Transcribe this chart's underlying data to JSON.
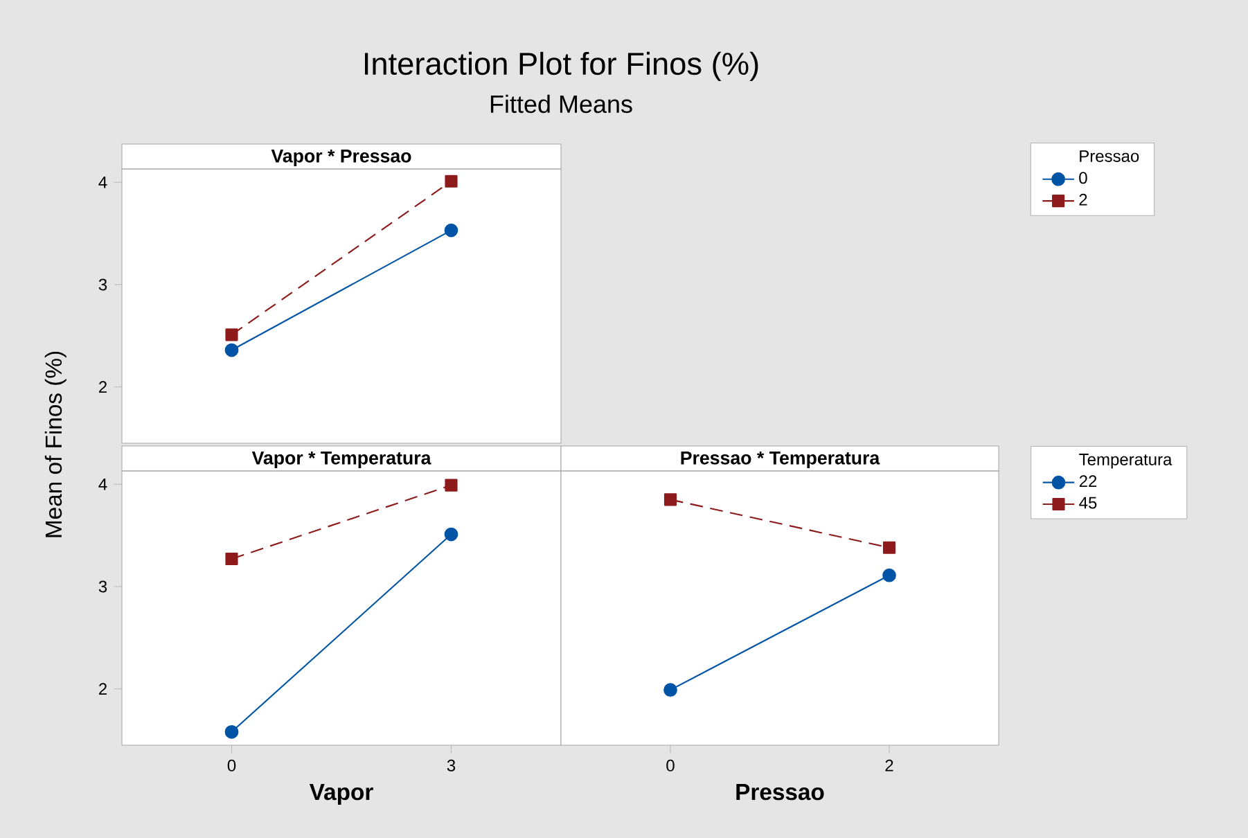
{
  "chart_data": [
    {
      "type": "line",
      "title": "Interaction Plot for Finos (%)",
      "subtitle": "Fitted Means",
      "annotations": [
        "Vapor * Pressao"
      ],
      "categories": [
        "0",
        "3"
      ],
      "ylim": [
        1.45,
        4.13
      ],
      "yticks": [
        2,
        3,
        4
      ],
      "tick_labels": "y",
      "legend": "right",
      "legend_title": "Pressao",
      "series": [
        {
          "name": "0",
          "color": "#0054a6",
          "marker": "circle",
          "line_style": "solid",
          "values": [
            2.36,
            3.53
          ]
        },
        {
          "name": "2",
          "color": "#8e1b1b",
          "marker": "square",
          "line_style": "dashed",
          "values": [
            2.51,
            4.01
          ]
        }
      ]
    },
    {
      "type": "line",
      "annotations": [
        "Vapor * Temperatura"
      ],
      "categories": [
        "0",
        "3"
      ],
      "xlabel": "Vapor",
      "ylabel": "Mean of Finos (%)",
      "ylim": [
        1.45,
        4.13
      ],
      "yticks": [
        2,
        3,
        4
      ],
      "series": [
        {
          "color": "#0054a6",
          "marker": "circle",
          "line_style": "solid",
          "values": [
            1.58,
            3.51
          ]
        },
        {
          "color": "#8e1b1b",
          "marker": "square",
          "line_style": "dashed",
          "values": [
            3.27,
            3.99
          ]
        }
      ]
    },
    {
      "type": "line",
      "annotations": [
        "Pressao * Temperatura"
      ],
      "categories": [
        "0",
        "2"
      ],
      "xlabel": "Pressao",
      "ylim": [
        1.45,
        4.13
      ],
      "yticks": [
        2,
        3,
        4
      ],
      "tick_labels": "x",
      "legend": "right",
      "legend_title": "Temperatura",
      "series": [
        {
          "name": "22",
          "color": "#0054a6",
          "marker": "circle",
          "line_style": "solid",
          "values": [
            1.99,
            3.11
          ]
        },
        {
          "name": "45",
          "color": "#8e1b1b",
          "marker": "square",
          "line_style": "dashed",
          "values": [
            3.85,
            3.38
          ]
        }
      ]
    }
  ]
}
